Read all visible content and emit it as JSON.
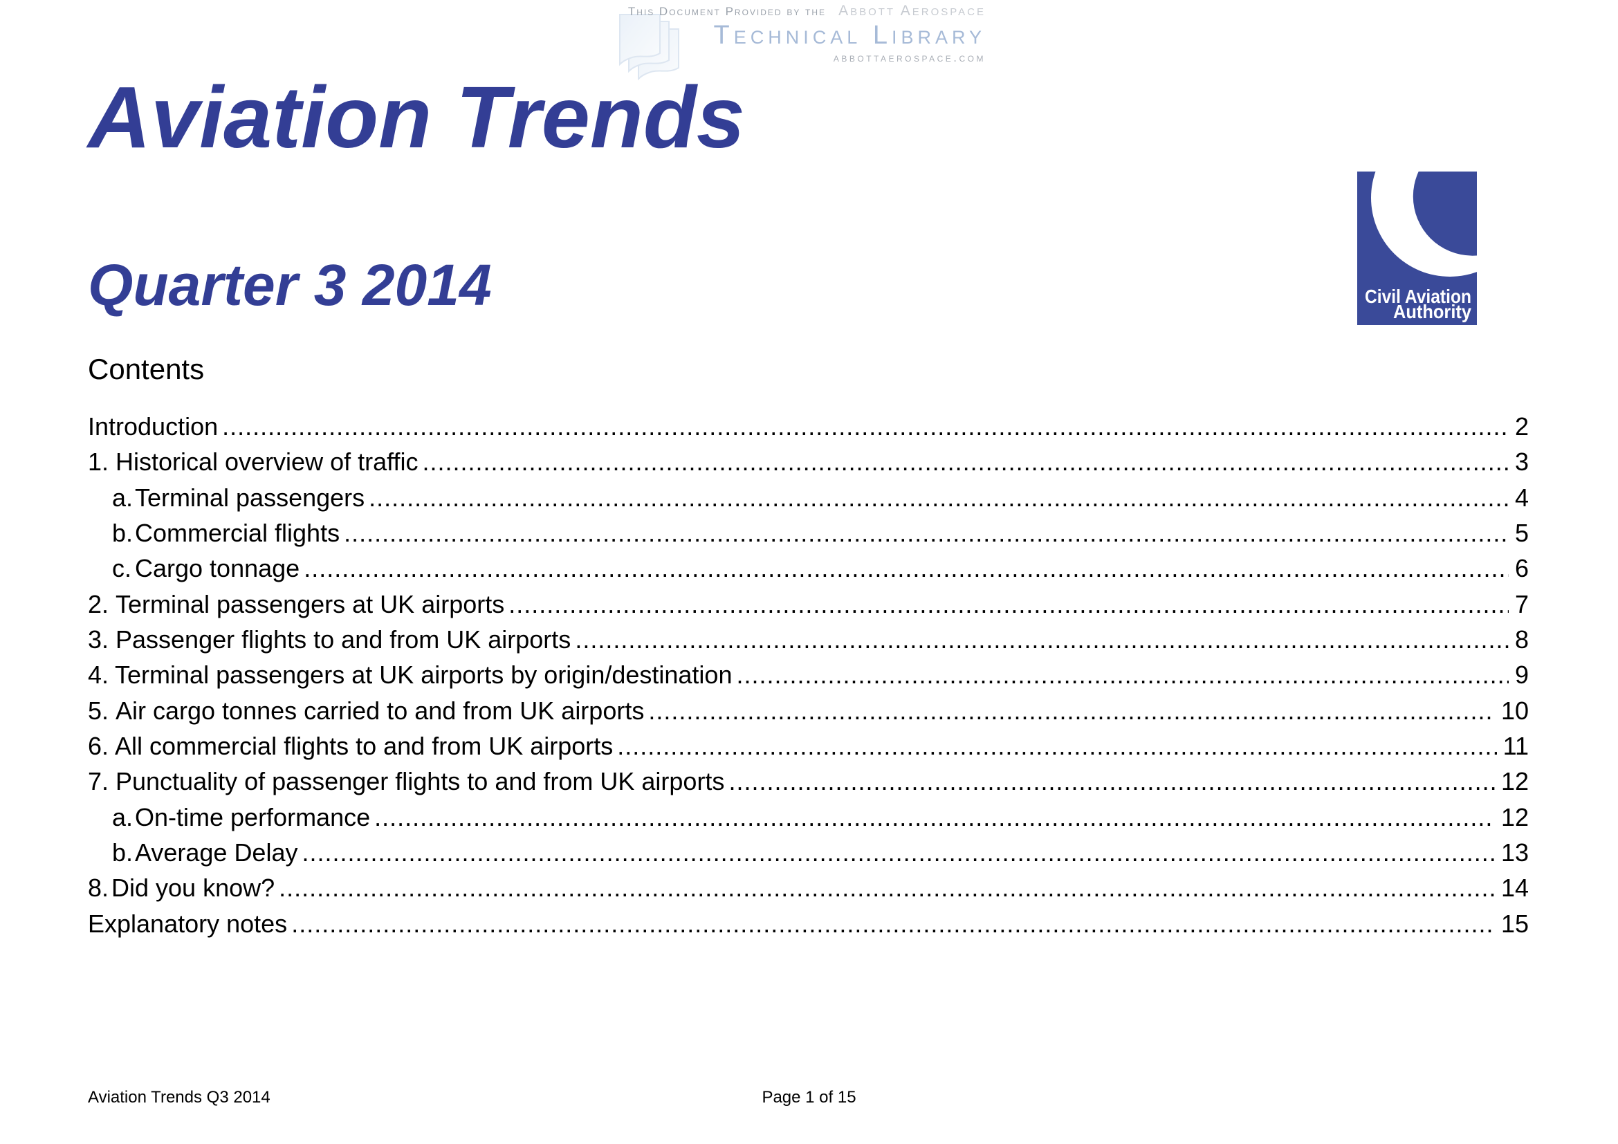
{
  "watermark": {
    "provided_by": "This Document Provided by the",
    "brand": "Abbott Aerospace",
    "library": "Technical Library",
    "site": "abbottaerospace.com",
    "icon": "stacked-pages-icon"
  },
  "titles": {
    "main": "Aviation Trends",
    "subtitle": "Quarter 3 2014"
  },
  "logo": {
    "line1": "Civil Aviation",
    "line2": "Authority"
  },
  "contents": {
    "heading": "Contents",
    "items": [
      {
        "label": "",
        "title": "Introduction",
        "page": "2",
        "level": 0,
        "tab": "none"
      },
      {
        "label": "1.",
        "title": "Historical overview of traffic",
        "page": "3",
        "level": 0,
        "tab": "wide"
      },
      {
        "label": "a.",
        "title": "Terminal passengers",
        "page": "4",
        "level": 1,
        "tab": "wide"
      },
      {
        "label": "b.",
        "title": "Commercial flights",
        "page": "5",
        "level": 1,
        "tab": "wide"
      },
      {
        "label": "c.",
        "title": "Cargo tonnage",
        "page": "6",
        "level": 1,
        "tab": "wide"
      },
      {
        "label": "2.",
        "title": "Terminal passengers at UK airports",
        "page": "7",
        "level": 0,
        "tab": "wide"
      },
      {
        "label": "3.",
        "title": "Passenger flights to and from UK airports",
        "page": "8",
        "level": 0,
        "tab": "wide"
      },
      {
        "label": "4.",
        "title": "Terminal passengers at UK airports by origin/destination",
        "page": "9",
        "level": 0,
        "tab": "narrow"
      },
      {
        "label": "5.",
        "title": "Air cargo tonnes carried to and from UK airports",
        "page": "10",
        "level": 0,
        "tab": "wide"
      },
      {
        "label": "6.",
        "title": "All commercial flights to and from UK airports",
        "page": "11",
        "level": 0,
        "tab": "narrow"
      },
      {
        "label": "7.",
        "title": "Punctuality of passenger flights to and from UK airports",
        "page": "12",
        "level": 0,
        "tab": "wide"
      },
      {
        "label": "a.",
        "title": "On-time performance",
        "page": "12",
        "level": 1,
        "tab": "wide"
      },
      {
        "label": "b.",
        "title": "Average Delay",
        "page": "13",
        "level": 1,
        "tab": "wide"
      },
      {
        "label": "8.",
        "title": "Did you know?",
        "page": "14",
        "level": 0,
        "tab": "medium"
      },
      {
        "label": "",
        "title": "Explanatory notes",
        "page": "15",
        "level": 0,
        "tab": "none"
      }
    ]
  },
  "footer": {
    "left": "Aviation Trends Q3 2014",
    "center": "Page 1 of 15"
  },
  "colors": {
    "title_blue": "#333e95",
    "logo_blue": "#3a4a99",
    "watermark_gray": "#9ba2ab",
    "watermark_light_gray": "#c7cbd1",
    "watermark_blue": "#a6bad7",
    "watermark_site_gray": "#a9aeb6"
  }
}
